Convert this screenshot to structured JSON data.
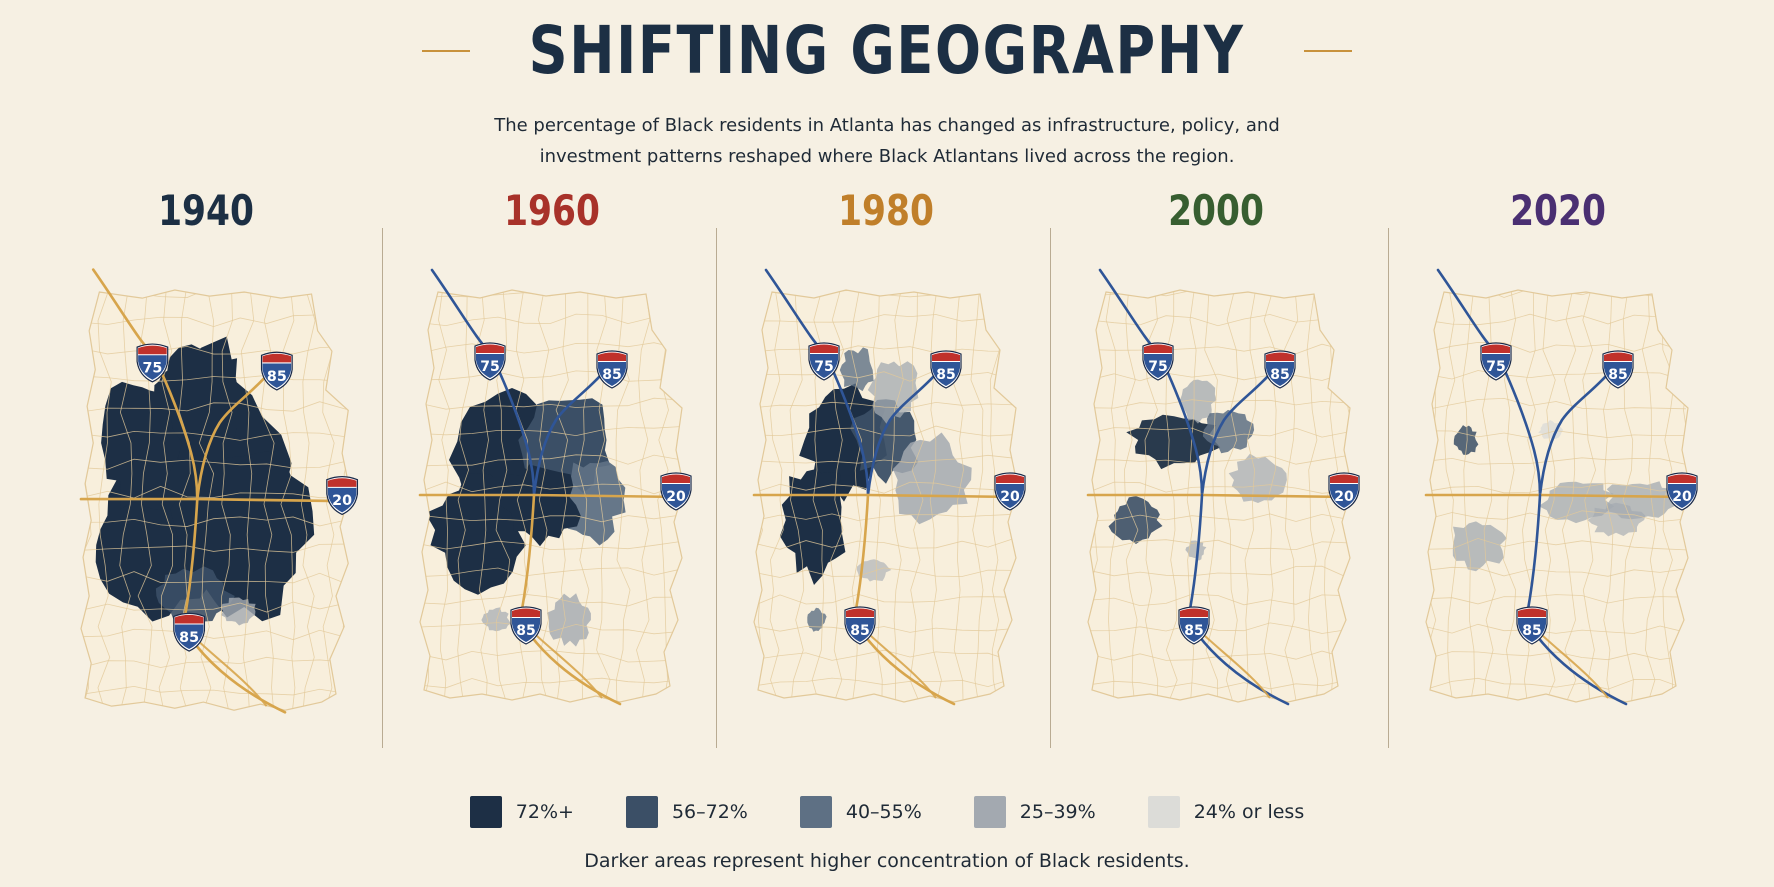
{
  "header": {
    "title": "SHIFTING GEOGRAPHY",
    "subtitle_line1": "The percentage of Black residents in Atlanta has changed as infrastructure, policy, and",
    "subtitle_line2": "investment patterns reshaped where Black Atlantans lived across the region."
  },
  "colors": {
    "background": "#f6f0e3",
    "road": "#d7a54c",
    "tract_lines": "#e2c99a",
    "interstate_blue": "#2f5597",
    "shield_red": "#c0312b",
    "accent_rule": "#c8923c"
  },
  "panels": [
    {
      "year": "1940",
      "year_color": "#1c2f44",
      "highway_style": "gold"
    },
    {
      "year": "1960",
      "year_color": "#a8322a",
      "highway_style": "mixed"
    },
    {
      "year": "1980",
      "year_color": "#c07f2a",
      "highway_style": "mixed"
    },
    {
      "year": "2000",
      "year_color": "#375e30",
      "highway_style": "blue"
    },
    {
      "year": "2020",
      "year_color": "#4a2f72",
      "highway_style": "blue"
    }
  ],
  "shields": {
    "i75": "75",
    "i85_north": "85",
    "i20": "20",
    "i85_south": "85"
  },
  "legend": [
    {
      "label": "72%+",
      "color": "#1d2f45"
    },
    {
      "label": "56–72%",
      "color": "#3b4f66"
    },
    {
      "label": "40–55%",
      "color": "#5e7084"
    },
    {
      "label": "25–39%",
      "color": "#a3a9b0"
    },
    {
      "label": "24% or less",
      "color": "#dcdcd8"
    }
  ],
  "footer": "Darker areas represent higher concentration of Black residents."
}
